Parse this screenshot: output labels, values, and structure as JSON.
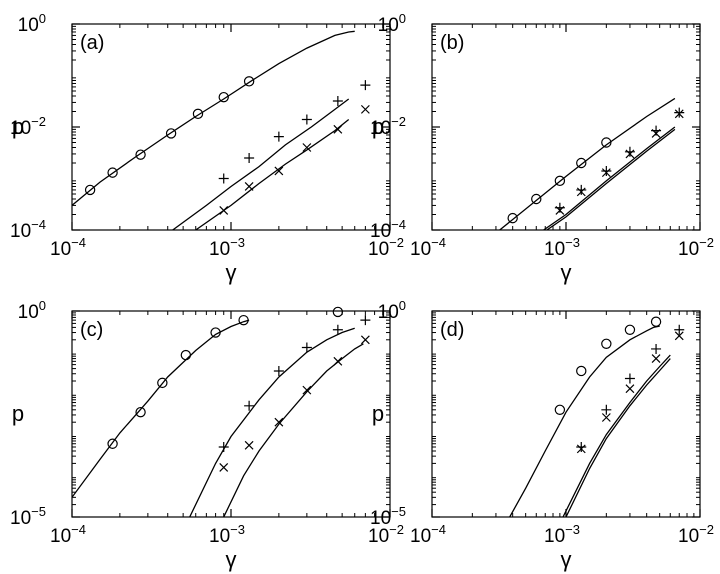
{
  "chart_data": [
    {
      "type": "scatter",
      "panel_label": "(a)",
      "xlabel": "γ",
      "ylabel": "p",
      "xscale": "log",
      "yscale": "log",
      "xlim": [
        0.0001,
        0.01
      ],
      "ylim": [
        0.0001,
        1
      ],
      "x_ticks": [
        {
          "value": 0.0001,
          "base": "10",
          "exp": "−4"
        },
        {
          "value": 0.001,
          "base": "10",
          "exp": "−3"
        },
        {
          "value": 0.01,
          "base": "10",
          "exp": "−2"
        }
      ],
      "y_ticks": [
        {
          "value": 0.0001,
          "base": "10",
          "exp": "−4"
        },
        {
          "value": 0.01,
          "base": "10",
          "exp": "−2"
        },
        {
          "value": 1,
          "base": "10",
          "exp": "0"
        }
      ],
      "series": [
        {
          "marker": "circle",
          "points": [
            [
              0.00013,
              0.0006
            ],
            [
              0.00018,
              0.0013
            ],
            [
              0.00027,
              0.0029
            ],
            [
              0.00042,
              0.0075
            ],
            [
              0.00062,
              0.018
            ],
            [
              0.0009,
              0.038
            ],
            [
              0.0013,
              0.077
            ]
          ]
        },
        {
          "marker": "plus",
          "points": [
            [
              0.0009,
              0.001
            ],
            [
              0.0013,
              0.0025
            ],
            [
              0.002,
              0.0065
            ],
            [
              0.003,
              0.014
            ],
            [
              0.0047,
              0.032
            ],
            [
              0.007,
              0.065
            ]
          ]
        },
        {
          "marker": "cross",
          "points": [
            [
              0.0009,
              0.00024
            ],
            [
              0.0013,
              0.0007
            ],
            [
              0.002,
              0.0014
            ],
            [
              0.003,
              0.004
            ],
            [
              0.0047,
              0.009
            ],
            [
              0.007,
              0.022
            ]
          ]
        }
      ],
      "curves": [
        {
          "points": [
            [
              0.0001,
              0.0003
            ],
            [
              0.00015,
              0.00085
            ],
            [
              0.00025,
              0.0026
            ],
            [
              0.0004,
              0.007
            ],
            [
              0.0006,
              0.016
            ],
            [
              0.0009,
              0.035
            ],
            [
              0.0014,
              0.085
            ],
            [
              0.002,
              0.17
            ],
            [
              0.003,
              0.34
            ],
            [
              0.0045,
              0.6
            ],
            [
              0.0055,
              0.7
            ],
            [
              0.006,
              0.72
            ]
          ]
        },
        {
          "points": [
            [
              0.00043,
              0.0001
            ],
            [
              0.0007,
              0.0003
            ],
            [
              0.001,
              0.0007
            ],
            [
              0.0015,
              0.0017
            ],
            [
              0.0022,
              0.0045
            ],
            [
              0.0032,
              0.01
            ],
            [
              0.0045,
              0.022
            ],
            [
              0.0055,
              0.035
            ]
          ]
        },
        {
          "points": [
            [
              0.0006,
              0.0001
            ],
            [
              0.001,
              0.0003
            ],
            [
              0.0015,
              0.0008
            ],
            [
              0.0022,
              0.0019
            ],
            [
              0.003,
              0.0036
            ],
            [
              0.0045,
              0.0085
            ],
            [
              0.0055,
              0.014
            ]
          ]
        }
      ]
    },
    {
      "type": "scatter",
      "panel_label": "(b)",
      "xlabel": "γ",
      "ylabel": "p",
      "xscale": "log",
      "yscale": "log",
      "xlim": [
        0.0001,
        0.01
      ],
      "ylim": [
        0.0001,
        1
      ],
      "x_ticks": [
        {
          "value": 0.0001,
          "base": "10",
          "exp": "−4"
        },
        {
          "value": 0.001,
          "base": "10",
          "exp": "−3"
        },
        {
          "value": 0.01,
          "base": "10",
          "exp": "−2"
        }
      ],
      "y_ticks": [
        {
          "value": 0.0001,
          "base": "10",
          "exp": "−4"
        },
        {
          "value": 0.01,
          "base": "10",
          "exp": "−2"
        },
        {
          "value": 1,
          "base": "10",
          "exp": "0"
        }
      ],
      "series": [
        {
          "marker": "circle",
          "points": [
            [
              0.0004,
              0.00017
            ],
            [
              0.0006,
              0.0004
            ],
            [
              0.0009,
              0.0009
            ],
            [
              0.0013,
              0.002
            ],
            [
              0.002,
              0.005
            ]
          ]
        },
        {
          "marker": "plus",
          "points": [
            [
              0.0009,
              0.00027
            ],
            [
              0.0013,
              0.0006
            ],
            [
              0.002,
              0.0014
            ],
            [
              0.003,
              0.0033
            ],
            [
              0.0047,
              0.0085
            ],
            [
              0.007,
              0.019
            ]
          ]
        },
        {
          "marker": "cross",
          "points": [
            [
              0.0009,
              0.00024
            ],
            [
              0.0013,
              0.00055
            ],
            [
              0.002,
              0.0013
            ],
            [
              0.003,
              0.003
            ],
            [
              0.0047,
              0.0075
            ],
            [
              0.007,
              0.018
            ]
          ]
        }
      ],
      "curves": [
        {
          "points": [
            [
              0.00032,
              0.0001
            ],
            [
              0.001,
              0.0011
            ],
            [
              0.002,
              0.0045
            ],
            [
              0.004,
              0.016
            ],
            [
              0.0065,
              0.036
            ]
          ]
        },
        {
          "points": [
            [
              0.00068,
              0.0001
            ],
            [
              0.001,
              0.0002
            ],
            [
              0.002,
              0.0009
            ],
            [
              0.004,
              0.0038
            ],
            [
              0.0065,
              0.01
            ]
          ]
        },
        {
          "points": [
            [
              0.00072,
              0.0001
            ],
            [
              0.001,
              0.00018
            ],
            [
              0.002,
              0.0008
            ],
            [
              0.004,
              0.0034
            ],
            [
              0.0065,
              0.009
            ]
          ]
        }
      ]
    },
    {
      "type": "scatter",
      "panel_label": "(c)",
      "xlabel": "γ",
      "ylabel": "p",
      "xscale": "log",
      "yscale": "log",
      "xlim": [
        0.0001,
        0.01
      ],
      "ylim": [
        1e-05,
        1
      ],
      "x_ticks": [
        {
          "value": 0.0001,
          "base": "10",
          "exp": "−4"
        },
        {
          "value": 0.001,
          "base": "10",
          "exp": "−3"
        },
        {
          "value": 0.01,
          "base": "10",
          "exp": "−2"
        }
      ],
      "y_ticks": [
        {
          "value": 1e-05,
          "base": "10",
          "exp": "−5"
        },
        {
          "value": 1,
          "base": "10",
          "exp": "0"
        }
      ],
      "series": [
        {
          "marker": "circle",
          "points": [
            [
              0.00018,
              0.0006
            ],
            [
              0.00027,
              0.0035
            ],
            [
              0.00037,
              0.018
            ],
            [
              0.00052,
              0.085
            ],
            [
              0.0008,
              0.3
            ],
            [
              0.0012,
              0.6
            ],
            [
              0.0047,
              0.95
            ]
          ]
        },
        {
          "marker": "plus",
          "points": [
            [
              0.0009,
              0.0005
            ],
            [
              0.0013,
              0.005
            ],
            [
              0.002,
              0.035
            ],
            [
              0.003,
              0.13
            ],
            [
              0.0047,
              0.35
            ],
            [
              0.007,
              0.6
            ]
          ]
        },
        {
          "marker": "cross",
          "points": [
            [
              0.0009,
              0.00016
            ],
            [
              0.0013,
              0.00055
            ],
            [
              0.002,
              0.002
            ],
            [
              0.003,
              0.012
            ],
            [
              0.0047,
              0.06
            ],
            [
              0.007,
              0.2
            ]
          ]
        }
      ],
      "curves": [
        {
          "points": [
            [
              0.0001,
              3e-05
            ],
            [
              0.00015,
              0.00025
            ],
            [
              0.0002,
              0.0011
            ],
            [
              0.0003,
              0.0065
            ],
            [
              0.0004,
              0.025
            ],
            [
              0.0006,
              0.11
            ],
            [
              0.0008,
              0.27
            ],
            [
              0.001,
              0.42
            ],
            [
              0.0012,
              0.55
            ],
            [
              0.0013,
              0.6
            ]
          ]
        },
        {
          "points": [
            [
              0.00055,
              1e-05
            ],
            [
              0.0008,
              0.0002
            ],
            [
              0.001,
              0.0009
            ],
            [
              0.0015,
              0.007
            ],
            [
              0.002,
              0.025
            ],
            [
              0.003,
              0.1
            ],
            [
              0.004,
              0.2
            ],
            [
              0.005,
              0.3
            ],
            [
              0.006,
              0.38
            ]
          ]
        },
        {
          "points": [
            [
              0.0009,
              1e-05
            ],
            [
              0.0012,
              0.0001
            ],
            [
              0.0015,
              0.0004
            ],
            [
              0.002,
              0.0018
            ],
            [
              0.003,
              0.011
            ],
            [
              0.004,
              0.035
            ],
            [
              0.005,
              0.07
            ],
            [
              0.006,
              0.12
            ],
            [
              0.0068,
              0.16
            ]
          ]
        }
      ]
    },
    {
      "type": "scatter",
      "panel_label": "(d)",
      "xlabel": "γ",
      "ylabel": "p",
      "xscale": "log",
      "yscale": "log",
      "xlim": [
        0.0001,
        0.01
      ],
      "ylim": [
        1e-05,
        1
      ],
      "x_ticks": [
        {
          "value": 0.0001,
          "base": "10",
          "exp": "−4"
        },
        {
          "value": 0.001,
          "base": "10",
          "exp": "−3"
        },
        {
          "value": 0.01,
          "base": "10",
          "exp": "−2"
        }
      ],
      "y_ticks": [
        {
          "value": 1e-05,
          "base": "10",
          "exp": "−5"
        },
        {
          "value": 1,
          "base": "10",
          "exp": "0"
        }
      ],
      "series": [
        {
          "marker": "circle",
          "points": [
            [
              0.0009,
              0.004
            ],
            [
              0.0013,
              0.035
            ],
            [
              0.002,
              0.16
            ],
            [
              0.003,
              0.35
            ],
            [
              0.0047,
              0.55
            ]
          ]
        },
        {
          "marker": "plus",
          "points": [
            [
              0.0013,
              0.0005
            ],
            [
              0.002,
              0.004
            ],
            [
              0.003,
              0.023
            ],
            [
              0.0047,
              0.12
            ],
            [
              0.007,
              0.35
            ]
          ]
        },
        {
          "marker": "cross",
          "points": [
            [
              0.0013,
              0.00045
            ],
            [
              0.002,
              0.0026
            ],
            [
              0.003,
              0.013
            ],
            [
              0.0047,
              0.07
            ],
            [
              0.007,
              0.25
            ]
          ]
        }
      ],
      "curves": [
        {
          "points": [
            [
              0.00038,
              1e-05
            ],
            [
              0.0005,
              5e-05
            ],
            [
              0.0007,
              0.0004
            ],
            [
              0.001,
              0.0035
            ],
            [
              0.0015,
              0.025
            ],
            [
              0.002,
              0.075
            ],
            [
              0.003,
              0.2
            ],
            [
              0.004,
              0.33
            ],
            [
              0.0045,
              0.4
            ],
            [
              0.005,
              0.43
            ]
          ]
        },
        {
          "points": [
            [
              0.00095,
              1e-05
            ],
            [
              0.0015,
              0.0002
            ],
            [
              0.002,
              0.001
            ],
            [
              0.003,
              0.006
            ],
            [
              0.004,
              0.02
            ],
            [
              0.005,
              0.045
            ],
            [
              0.006,
              0.085
            ]
          ]
        },
        {
          "points": [
            [
              0.001,
              1e-05
            ],
            [
              0.0015,
              0.00015
            ],
            [
              0.002,
              0.0008
            ],
            [
              0.003,
              0.005
            ],
            [
              0.004,
              0.016
            ],
            [
              0.005,
              0.036
            ],
            [
              0.006,
              0.07
            ]
          ]
        }
      ]
    }
  ]
}
